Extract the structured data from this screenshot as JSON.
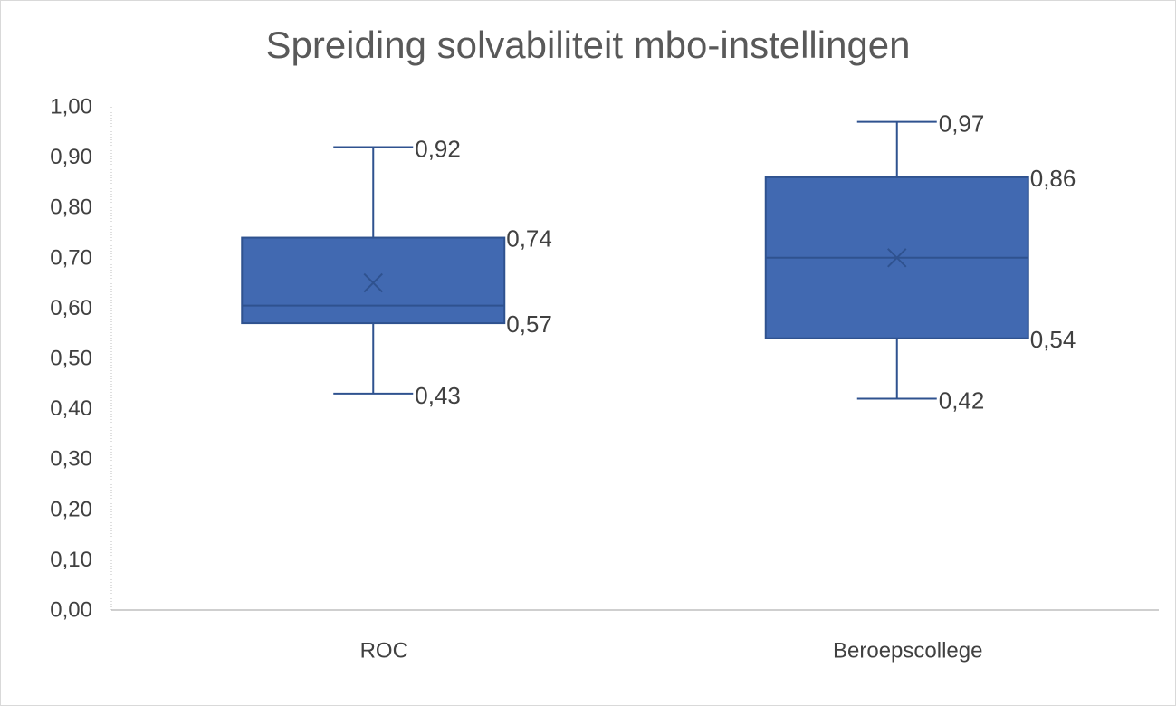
{
  "chart_data": {
    "type": "box",
    "title": "Spreiding solvabiliteit mbo-instellingen",
    "xlabel": "",
    "ylabel": "",
    "ylim": [
      0,
      1
    ],
    "ytick_step": 0.1,
    "yticks": [
      "0,00",
      "0,10",
      "0,20",
      "0,30",
      "0,40",
      "0,50",
      "0,60",
      "0,70",
      "0,80",
      "0,90",
      "1,00"
    ],
    "categories": [
      "ROC",
      "Beroepscollege"
    ],
    "boxes": [
      {
        "category": "ROC",
        "min": 0.43,
        "q1": 0.57,
        "median": 0.605,
        "mean": 0.65,
        "q3": 0.74,
        "max": 0.92,
        "labels": {
          "min": "0,43",
          "q1": "0,57",
          "q3": "0,74",
          "max": "0,92"
        }
      },
      {
        "category": "Beroepscollege",
        "min": 0.42,
        "q1": 0.54,
        "median": 0.7,
        "mean": 0.7,
        "q3": 0.86,
        "max": 0.97,
        "labels": {
          "min": "0,42",
          "q1": "0,54",
          "q3": "0,86",
          "max": "0,97"
        }
      }
    ],
    "colors": {
      "box_fill": "#4169b1",
      "box_stroke": "#2f528f",
      "line": "#2f528f"
    },
    "grid": false,
    "legend": "none"
  }
}
